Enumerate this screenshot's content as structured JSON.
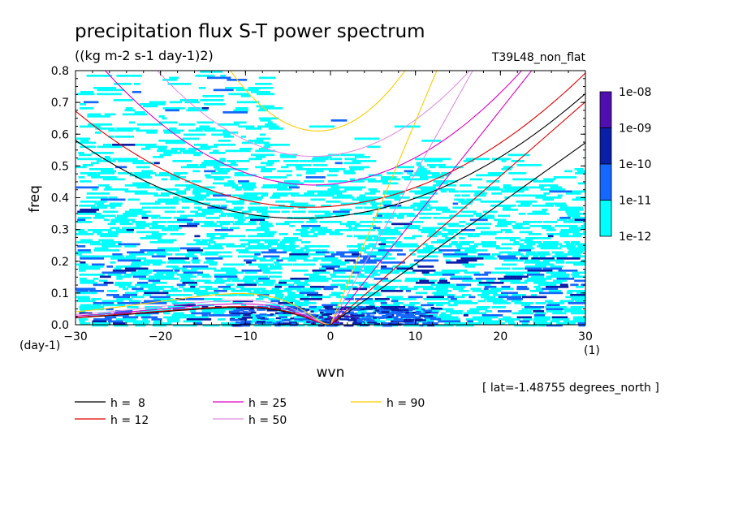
{
  "chart_data": {
    "type": "heatmap",
    "title": "precipitation flux S-T power spectrum",
    "subtitle": "((kg m-2 s-1 day-1)2)",
    "run_label": "T39L48_non_flat",
    "xlabel": "wvn",
    "ylabel": "freq",
    "x_unit": "(1)",
    "y_unit": "(day-1)",
    "xlim": [
      -30,
      30
    ],
    "ylim": [
      0,
      0.8
    ],
    "x_ticks": [
      "-30",
      "-20",
      "-10",
      "0",
      "10",
      "20",
      "30"
    ],
    "y_ticks": [
      "0.0",
      "0.1",
      "0.2",
      "0.3",
      "0.4",
      "0.5",
      "0.6",
      "0.7",
      "0.8"
    ],
    "latitude_note": "[ lat=-1.48755 degrees_north ]",
    "colorbar": {
      "labels": [
        "1e-08",
        "1e-09",
        "1e-10",
        "1e-11",
        "1e-12"
      ],
      "colors": [
        "#4f0fb0",
        "#0a1fa8",
        "#1467ff",
        "#00ffff"
      ]
    },
    "legend": [
      {
        "label": "h =  8",
        "color": "#000000"
      },
      {
        "label": "h = 12",
        "color": "#e00000"
      },
      {
        "label": "h = 25",
        "color": "#e000c8"
      },
      {
        "label": "h = 50",
        "color": "#e090e0"
      },
      {
        "label": "h = 90",
        "color": "#ffcc00"
      }
    ],
    "dispersion_curves": [
      {
        "h": 8,
        "color": "#000000",
        "kelvin_slope": 0.0191,
        "ig_min": 0.335,
        "ig_k0": -3.5,
        "ig_curv": 0.00035,
        "rossby_max": 0.055
      },
      {
        "h": 12,
        "color": "#e00000",
        "kelvin_slope": 0.0234,
        "ig_min": 0.37,
        "ig_k0": -2.5,
        "ig_curv": 0.0004,
        "rossby_max": 0.058
      },
      {
        "h": 25,
        "color": "#e000c8",
        "kelvin_slope": 0.0338,
        "ig_min": 0.44,
        "ig_k0": -2.0,
        "ig_curv": 0.0006,
        "rossby_max": 0.067
      },
      {
        "h": 50,
        "color": "#e090e0",
        "kelvin_slope": 0.0478,
        "ig_min": 0.53,
        "ig_k0": -2.0,
        "ig_curv": 0.0008,
        "rossby_max": 0.078
      },
      {
        "h": 90,
        "color": "#ffcc00",
        "kelvin_slope": 0.064,
        "ig_min": 0.61,
        "ig_k0": -1.5,
        "ig_curv": 0.0018,
        "rossby_max": 0.1
      }
    ]
  }
}
